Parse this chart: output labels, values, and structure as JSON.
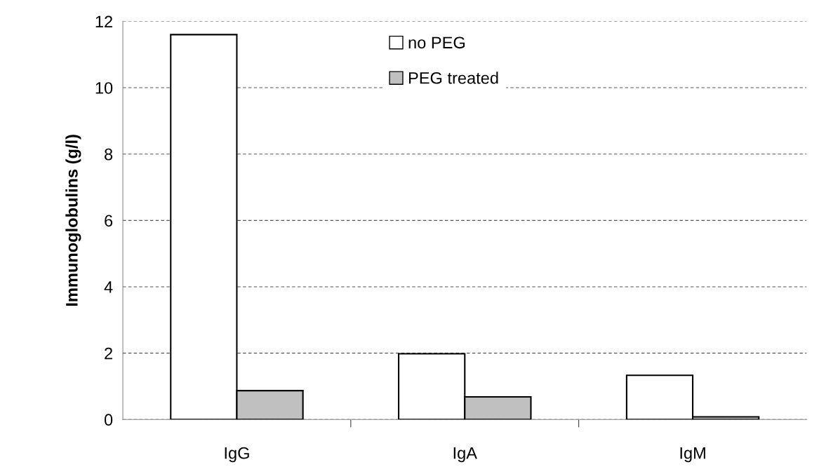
{
  "chart_data": {
    "type": "bar",
    "ylabel": "Immunoglobulins (g/l)",
    "categories": [
      "IgG",
      "IgA",
      "IgM"
    ],
    "series": [
      {
        "name": "no PEG",
        "color": "#ffffff",
        "values": [
          11.6,
          1.98,
          1.33
        ]
      },
      {
        "name": "PEG treated",
        "color": "#c0c0c0",
        "values": [
          0.87,
          0.68,
          0.08
        ]
      }
    ],
    "ylim": [
      0,
      12
    ],
    "yticks": [
      0,
      2,
      4,
      6,
      8,
      10,
      12
    ],
    "grid": "y",
    "legend": "top"
  }
}
